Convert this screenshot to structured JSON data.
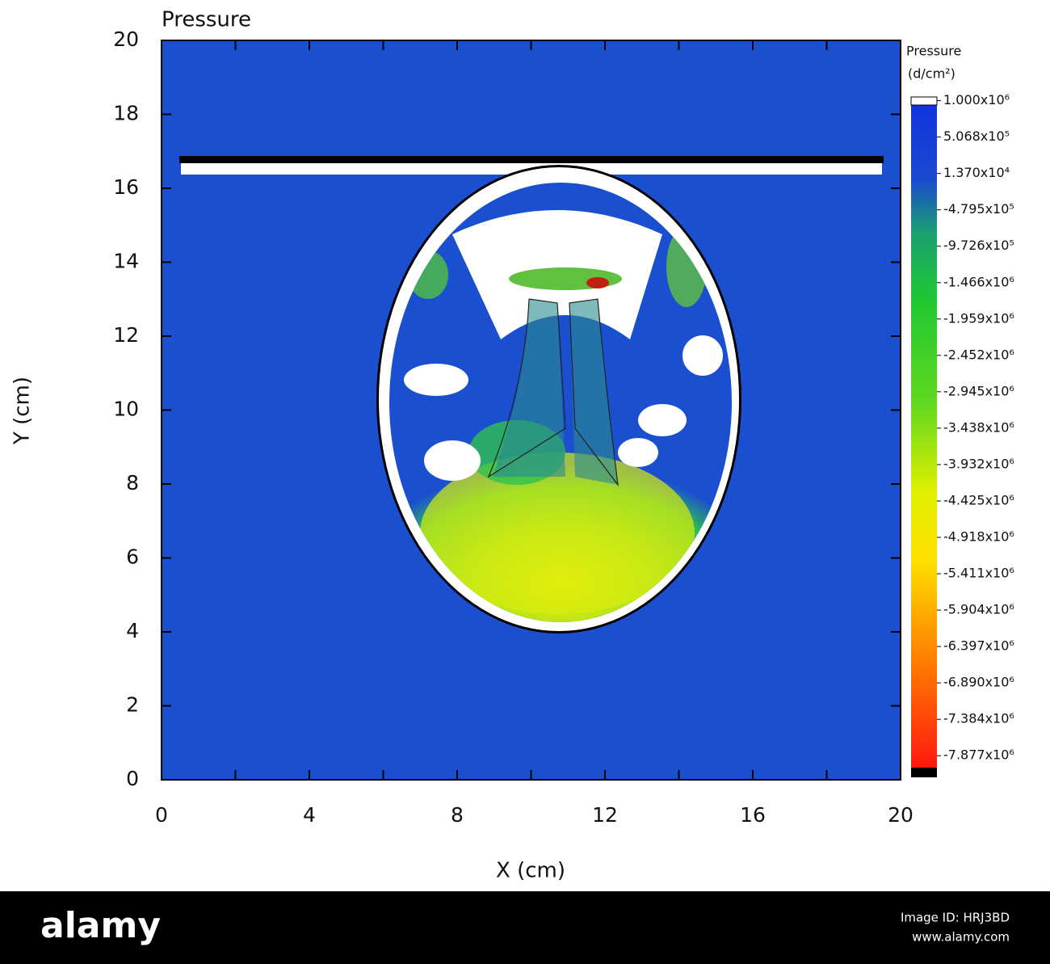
{
  "chart_data": {
    "type": "heatmap",
    "title": "Pressure",
    "x_label": "X (cm)",
    "y_label": "Y (cm)",
    "xlim": [
      0,
      20
    ],
    "ylim": [
      0,
      20
    ],
    "xticks": [
      0,
      4,
      8,
      12,
      16,
      20
    ],
    "xminorticks": [
      2,
      6,
      10,
      14,
      18
    ],
    "yticks": [
      0,
      2,
      4,
      6,
      8,
      10,
      12,
      14,
      16,
      18,
      20
    ],
    "colorbar": {
      "title": "Pressure",
      "unit": "(d/cm²)",
      "clim": [
        -8170000,
        1050000
      ],
      "ticks": [
        {
          "value": 1000000,
          "label": "1.000x10⁶"
        },
        {
          "value": 506800,
          "label": "5.068x10⁵"
        },
        {
          "value": 13700,
          "label": "1.370x10⁴"
        },
        {
          "value": -479500,
          "label": "-4.795x10⁵"
        },
        {
          "value": -972600,
          "label": "-9.726x10⁵"
        },
        {
          "value": -1466000,
          "label": "-1.466x10⁶"
        },
        {
          "value": -1959000,
          "label": "-1.959x10⁶"
        },
        {
          "value": -2452000,
          "label": "-2.452x10⁶"
        },
        {
          "value": -2945000,
          "label": "-2.945x10⁶"
        },
        {
          "value": -3438000,
          "label": "-3.438x10⁶"
        },
        {
          "value": -3932000,
          "label": "-3.932x10⁶"
        },
        {
          "value": -4425000,
          "label": "-4.425x10⁶"
        },
        {
          "value": -4918000,
          "label": "-4.918x10⁶"
        },
        {
          "value": -5411000,
          "label": "-5.411x10⁶"
        },
        {
          "value": -5904000,
          "label": "-5.904x10⁶"
        },
        {
          "value": -6397000,
          "label": "-6.397x10⁶"
        },
        {
          "value": -6890000,
          "label": "-6.890x10⁶"
        },
        {
          "value": -7384000,
          "label": "-7.384x10⁶"
        },
        {
          "value": -7877000,
          "label": "-7.877x10⁶"
        }
      ]
    }
  },
  "banner": {
    "brand": "alamy",
    "image_id": "Image ID: HRJ3BD",
    "site": "www.alamy.com"
  }
}
